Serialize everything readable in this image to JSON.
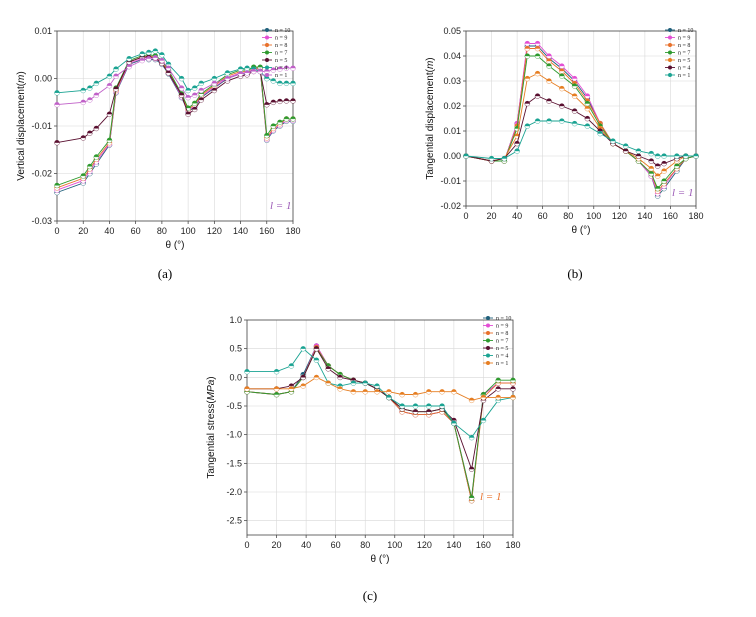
{
  "chart_data": [
    {
      "type": "line",
      "panel_caption": "(a)",
      "xlabel": "θ (°)",
      "ylabel_main": "Vertical displacement(",
      "ylabel_unit": "m",
      "ylabel_end": ")",
      "xlim": [
        0,
        180
      ],
      "ylim": [
        -0.03,
        0.01
      ],
      "xticks": [
        "0",
        "20",
        "40",
        "60",
        "80",
        "100",
        "120",
        "140",
        "160",
        "180"
      ],
      "yticks": [
        "-0.03",
        "-0.02",
        "-0.01",
        "0.00",
        "0.01"
      ],
      "annotation": "l = 1",
      "annotation_color": "#9b59b6",
      "x": [
        0,
        20,
        25,
        30,
        40,
        45,
        55,
        65,
        70,
        75,
        80,
        85,
        95,
        100,
        105,
        110,
        120,
        130,
        140,
        145,
        150,
        155,
        160,
        165,
        170,
        175,
        180
      ],
      "series": [
        {
          "name": "n = 10",
          "color": "#1f5f7a",
          "values": [
            -0.024,
            -0.022,
            -0.02,
            -0.018,
            -0.014,
            -0.003,
            0.003,
            0.004,
            0.004,
            0.004,
            0.003,
            0.001,
            -0.004,
            -0.007,
            -0.006,
            -0.004,
            -0.002,
            0.0,
            0.001,
            0.001,
            0.002,
            0.002,
            -0.013,
            -0.011,
            -0.01,
            -0.009,
            -0.009
          ]
        },
        {
          "name": "n = 9",
          "color": "#e34fd4",
          "values": [
            -0.0235,
            -0.0215,
            -0.0195,
            -0.0175,
            -0.0138,
            -0.0028,
            0.0032,
            0.0042,
            0.0044,
            0.0042,
            0.0032,
            0.0012,
            -0.0038,
            -0.0068,
            -0.0058,
            -0.0038,
            -0.0018,
            0.0002,
            0.0012,
            0.0012,
            0.002,
            0.002,
            -0.0128,
            -0.0108,
            -0.0098,
            -0.0088,
            -0.0088
          ]
        },
        {
          "name": "n = 8",
          "color": "#e8702a",
          "values": [
            -0.023,
            -0.021,
            -0.019,
            -0.017,
            -0.0135,
            -0.0025,
            0.0035,
            0.0045,
            0.0047,
            0.0045,
            0.0035,
            0.0015,
            -0.0035,
            -0.0065,
            -0.0055,
            -0.0035,
            -0.0015,
            0.0005,
            0.0015,
            0.0015,
            0.0022,
            0.0022,
            -0.0125,
            -0.0105,
            -0.0095,
            -0.0085,
            -0.0085
          ]
        },
        {
          "name": "n = 7",
          "color": "#2e9a2e",
          "values": [
            -0.0225,
            -0.0205,
            -0.0185,
            -0.0165,
            -0.013,
            -0.002,
            0.0038,
            0.0048,
            0.005,
            0.0048,
            0.0038,
            0.0018,
            -0.0032,
            -0.0062,
            -0.0052,
            -0.0032,
            -0.0012,
            0.0008,
            0.0018,
            0.0018,
            0.0024,
            0.0024,
            -0.012,
            -0.01,
            -0.0092,
            -0.0085,
            -0.0085
          ]
        },
        {
          "name": "n = 5",
          "color": "#5a1030",
          "values": [
            -0.0135,
            -0.0125,
            -0.0115,
            -0.0105,
            -0.0075,
            -0.0022,
            0.0035,
            0.0045,
            0.0045,
            0.0043,
            0.0032,
            0.0012,
            -0.0035,
            -0.0075,
            -0.0065,
            -0.0045,
            -0.0025,
            -0.0005,
            0.0005,
            0.0008,
            0.0015,
            0.0015,
            -0.0055,
            -0.005,
            -0.0048,
            -0.0047,
            -0.0047
          ]
        },
        {
          "name": "n = 4",
          "color": "#1aa392",
          "values": [
            -0.003,
            -0.0025,
            -0.002,
            -0.001,
            0.0005,
            0.002,
            0.0042,
            0.0052,
            0.0055,
            0.0058,
            0.005,
            0.003,
            0.0,
            -0.0025,
            -0.002,
            -0.001,
            0.0,
            0.0012,
            0.002,
            0.0022,
            0.002,
            0.0015,
            0.0,
            -0.0005,
            -0.001,
            -0.001,
            -0.001
          ]
        },
        {
          "name": "n = 1",
          "color": "#c060c8",
          "values": [
            -0.0055,
            -0.005,
            -0.0045,
            -0.0035,
            -0.0015,
            0.0005,
            0.0025,
            0.0038,
            0.0042,
            0.0044,
            0.0038,
            0.0022,
            -0.002,
            -0.004,
            -0.0035,
            -0.0025,
            -0.001,
            0.0,
            0.001,
            0.0012,
            0.0015,
            0.0015,
            0.0015,
            0.0018,
            0.002,
            0.0022,
            0.0022
          ]
        }
      ]
    },
    {
      "type": "line",
      "panel_caption": "(b)",
      "xlabel": "θ (°)",
      "ylabel_main": "Tangential displacement(",
      "ylabel_unit": "m",
      "ylabel_end": ")",
      "xlim": [
        0,
        180
      ],
      "ylim": [
        -0.02,
        0.05
      ],
      "xticks": [
        "0",
        "20",
        "40",
        "60",
        "80",
        "100",
        "120",
        "140",
        "160",
        "180"
      ],
      "yticks": [
        "-0.02",
        "-0.01",
        "0.00",
        "0.01",
        "0.02",
        "0.03",
        "0.04",
        "0.05"
      ],
      "annotation": "l = 1",
      "annotation_color": "#9b59b6",
      "x": [
        0,
        20,
        30,
        40,
        48,
        56,
        65,
        75,
        85,
        95,
        105,
        115,
        125,
        135,
        145,
        150,
        155,
        165,
        172,
        180
      ],
      "series": [
        {
          "name": "n = 10",
          "color": "#1f5f7a",
          "values": [
            0.0,
            -0.002,
            -0.002,
            0.013,
            0.044,
            0.044,
            0.039,
            0.035,
            0.03,
            0.023,
            0.013,
            0.005,
            0.002,
            -0.002,
            -0.008,
            -0.016,
            -0.013,
            -0.006,
            -0.001,
            0.0
          ]
        },
        {
          "name": "n = 9",
          "color": "#e34fd4",
          "values": [
            0.0,
            -0.002,
            -0.002,
            0.013,
            0.045,
            0.045,
            0.04,
            0.036,
            0.031,
            0.024,
            0.013,
            0.005,
            0.002,
            -0.002,
            -0.008,
            -0.015,
            -0.012,
            -0.005,
            -0.001,
            0.0
          ]
        },
        {
          "name": "n = 8",
          "color": "#e8702a",
          "values": [
            0.0,
            -0.002,
            -0.002,
            0.012,
            0.043,
            0.043,
            0.038,
            0.034,
            0.029,
            0.022,
            0.013,
            0.005,
            0.002,
            -0.002,
            -0.007,
            -0.014,
            -0.011,
            -0.005,
            -0.001,
            0.0
          ]
        },
        {
          "name": "n = 7",
          "color": "#2e9a2e",
          "values": [
            0.0,
            -0.002,
            -0.002,
            0.011,
            0.04,
            0.04,
            0.036,
            0.032,
            0.028,
            0.021,
            0.012,
            0.005,
            0.002,
            -0.002,
            -0.007,
            -0.013,
            -0.01,
            -0.004,
            -0.001,
            0.0
          ]
        },
        {
          "name": "n = 5",
          "color": "#e67e22",
          "values": [
            0.0,
            -0.002,
            -0.001,
            0.008,
            0.031,
            0.033,
            0.03,
            0.027,
            0.024,
            0.019,
            0.011,
            0.005,
            0.002,
            -0.001,
            -0.005,
            -0.008,
            -0.006,
            -0.002,
            0.0,
            0.0
          ]
        },
        {
          "name": "n = 4",
          "color": "#5a1030",
          "values": [
            0.0,
            -0.002,
            -0.001,
            0.005,
            0.021,
            0.024,
            0.022,
            0.02,
            0.018,
            0.015,
            0.01,
            0.005,
            0.002,
            0.0,
            -0.002,
            -0.004,
            -0.003,
            -0.001,
            0.0,
            0.0
          ]
        },
        {
          "name": "n = 1",
          "color": "#1aa392",
          "values": [
            0.0,
            -0.001,
            -0.001,
            0.002,
            0.012,
            0.014,
            0.014,
            0.014,
            0.013,
            0.012,
            0.009,
            0.006,
            0.004,
            0.002,
            0.001,
            0.0,
            0.0,
            0.0,
            0.0,
            0.0
          ]
        }
      ]
    },
    {
      "type": "line",
      "panel_caption": "(c)",
      "xlabel": "θ (°)",
      "ylabel_main": "Tangential stress(",
      "ylabel_unit": "MPa",
      "ylabel_end": ")",
      "xlim": [
        0,
        180
      ],
      "ylim": [
        -2.75,
        1.0
      ],
      "xticks": [
        "0",
        "20",
        "40",
        "60",
        "80",
        "100",
        "120",
        "140",
        "160",
        "180"
      ],
      "yticks": [
        "-2.5",
        "-2.0",
        "-1.5",
        "-1.0",
        "-0.5",
        "0.0",
        "0.5",
        "1.0"
      ],
      "annotation": "l = 1",
      "annotation_color": "#e8702a",
      "x": [
        0,
        20,
        30,
        38,
        47,
        55,
        63,
        72,
        80,
        88,
        96,
        105,
        114,
        123,
        132,
        140,
        152,
        160,
        170,
        180
      ],
      "series": [
        {
          "name": "n = 10",
          "color": "#1f5f7a",
          "values": [
            -0.25,
            -0.3,
            -0.25,
            0.05,
            0.55,
            0.2,
            0.05,
            -0.05,
            -0.1,
            -0.2,
            -0.35,
            -0.6,
            -0.65,
            -0.65,
            -0.6,
            -0.8,
            -2.15,
            -0.3,
            -0.1,
            -0.1
          ]
        },
        {
          "name": "n = 9",
          "color": "#e34fd4",
          "values": [
            -0.25,
            -0.3,
            -0.25,
            0.0,
            0.55,
            0.2,
            0.05,
            -0.05,
            -0.1,
            -0.2,
            -0.35,
            -0.6,
            -0.65,
            -0.65,
            -0.6,
            -0.8,
            -2.1,
            -0.3,
            -0.1,
            -0.1
          ]
        },
        {
          "name": "n = 8",
          "color": "#e8702a",
          "values": [
            -0.25,
            -0.3,
            -0.25,
            0.0,
            0.52,
            0.2,
            0.05,
            -0.05,
            -0.1,
            -0.2,
            -0.35,
            -0.6,
            -0.65,
            -0.65,
            -0.6,
            -0.8,
            -2.15,
            -0.35,
            -0.1,
            -0.1
          ]
        },
        {
          "name": "n = 7",
          "color": "#2e9a2e",
          "values": [
            -0.25,
            -0.3,
            -0.25,
            0.0,
            0.5,
            0.2,
            0.05,
            -0.05,
            -0.1,
            -0.2,
            -0.35,
            -0.55,
            -0.6,
            -0.6,
            -0.55,
            -0.8,
            -2.1,
            -0.3,
            -0.05,
            -0.05
          ]
        },
        {
          "name": "n = 5",
          "color": "#5a1030",
          "values": [
            -0.2,
            -0.2,
            -0.15,
            0.0,
            0.5,
            0.15,
            0.0,
            -0.05,
            -0.1,
            -0.2,
            -0.35,
            -0.55,
            -0.6,
            -0.6,
            -0.55,
            -0.75,
            -1.6,
            -0.4,
            -0.2,
            -0.2
          ]
        },
        {
          "name": "n = 4",
          "color": "#1aa392",
          "values": [
            0.1,
            0.1,
            0.2,
            0.5,
            0.3,
            -0.1,
            -0.15,
            -0.1,
            -0.1,
            -0.15,
            -0.35,
            -0.5,
            -0.5,
            -0.5,
            -0.5,
            -0.8,
            -1.05,
            -0.75,
            -0.4,
            -0.35
          ]
        },
        {
          "name": "n = 1",
          "color": "#e67e22",
          "values": [
            -0.2,
            -0.2,
            -0.2,
            -0.15,
            0.0,
            -0.1,
            -0.2,
            -0.25,
            -0.25,
            -0.25,
            -0.25,
            -0.3,
            -0.3,
            -0.25,
            -0.25,
            -0.25,
            -0.4,
            -0.35,
            -0.35,
            -0.35
          ]
        }
      ]
    }
  ]
}
